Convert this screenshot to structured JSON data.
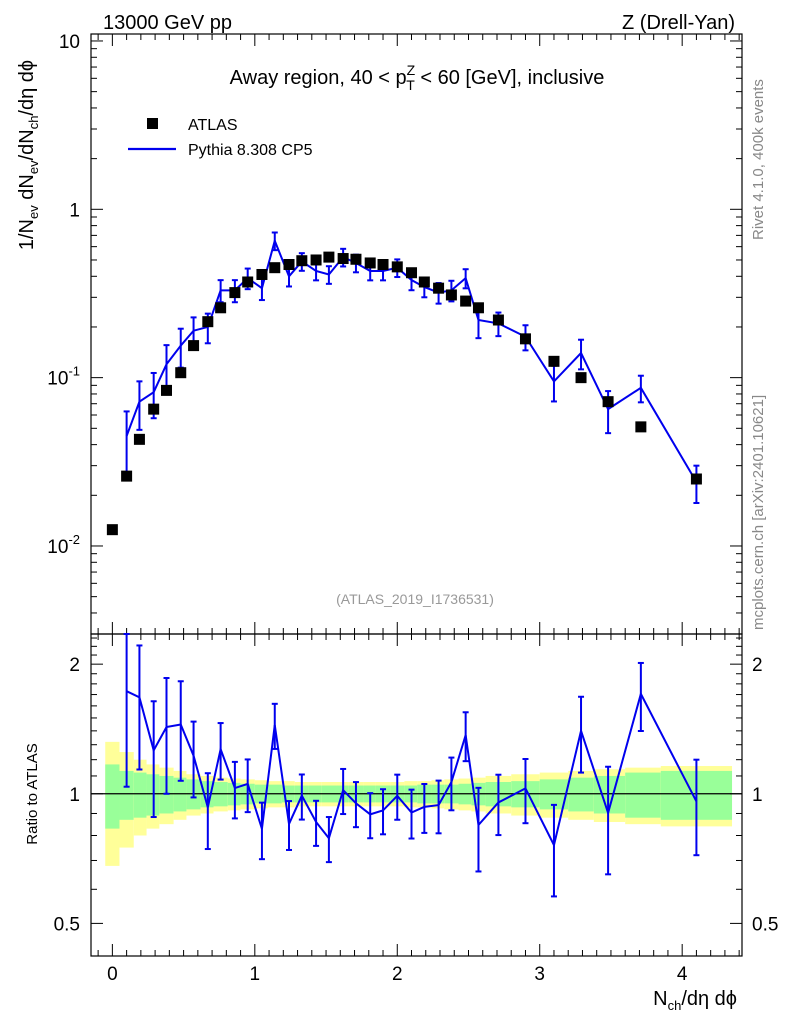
{
  "header": {
    "left": "13000 GeV pp",
    "right": "Z (Drell-Yan)"
  },
  "side": {
    "rivet": "Rivet 4.1.0,  400k events",
    "mcplots": "mcplots.cern.ch [arXiv:2401.10621]"
  },
  "chart_data": {
    "type": "line",
    "title_parts": {
      "pre": "Away region, 40 < p",
      "sup": "Z",
      "sub": "T",
      "post": " < 60 [GeV], inclusive"
    },
    "watermark": "(ATLAS_2019_I1736531)",
    "ylabel_main": "1/N_ev dN_ev/dN_ch/dη dϕ",
    "ylabel_ratio": "Ratio to ATLAS",
    "xlabel": "N_ch/dη dϕ",
    "legend": {
      "data": "ATLAS",
      "mc": "Pythia 8.308 CP5",
      "placement": "top-left"
    },
    "colors": {
      "data": "#000000",
      "mc": "#0000ee",
      "band_inner": "#99ff99",
      "band_outer": "#ffff99"
    },
    "x_range": [
      -0.15,
      4.42
    ],
    "x_ticks": [
      "0",
      "1",
      "2",
      "3",
      "4"
    ],
    "y_range_main": [
      0.003,
      11
    ],
    "y_ticks_main": [
      {
        "v": 0.01,
        "base": "10",
        "exp": "-2"
      },
      {
        "v": 0.1,
        "base": "10",
        "exp": "-1"
      },
      {
        "v": 1,
        "base": "1",
        "exp": ""
      },
      {
        "v": 10,
        "base": "10",
        "exp": ""
      }
    ],
    "y_range_ratio": [
      0.42,
      2.35
    ],
    "y_ticks_ratio": [
      "0.5",
      "1",
      "2"
    ],
    "data_x": [
      0.0,
      0.1,
      0.19,
      0.29,
      0.38,
      0.48,
      0.57,
      0.67,
      0.76,
      0.86,
      0.95,
      1.05,
      1.14,
      1.24,
      1.33,
      1.43,
      1.52,
      1.62,
      1.71,
      1.81,
      1.9,
      2.0,
      2.1,
      2.19,
      2.29,
      2.38,
      2.48,
      2.57,
      2.71,
      2.9,
      3.1,
      3.29,
      3.48,
      3.71,
      4.1
    ],
    "data_y": [
      0.0125,
      0.026,
      0.043,
      0.065,
      0.084,
      0.107,
      0.155,
      0.215,
      0.26,
      0.32,
      0.37,
      0.41,
      0.45,
      0.47,
      0.495,
      0.5,
      0.52,
      0.51,
      0.505,
      0.48,
      0.47,
      0.455,
      0.42,
      0.37,
      0.34,
      0.31,
      0.285,
      0.26,
      0.22,
      0.17,
      0.125,
      0.1,
      0.072,
      0.051,
      0.025
    ],
    "mc_x": [
      0.1,
      0.19,
      0.29,
      0.38,
      0.48,
      0.57,
      0.67,
      0.76,
      0.86,
      0.95,
      1.05,
      1.14,
      1.24,
      1.33,
      1.43,
      1.52,
      1.62,
      1.71,
      1.81,
      1.9,
      2.0,
      2.1,
      2.19,
      2.29,
      2.38,
      2.48,
      2.57,
      2.71,
      2.9,
      3.1,
      3.29,
      3.48,
      3.71,
      4.1
    ],
    "mc_y": [
      0.045,
      0.072,
      0.082,
      0.12,
      0.155,
      0.19,
      0.2,
      0.33,
      0.33,
      0.39,
      0.34,
      0.65,
      0.4,
      0.49,
      0.43,
      0.41,
      0.52,
      0.48,
      0.43,
      0.43,
      0.45,
      0.38,
      0.345,
      0.32,
      0.33,
      0.39,
      0.22,
      0.21,
      0.175,
      0.095,
      0.14,
      0.065,
      0.087,
      0.024
    ],
    "mc_err": [
      0.4,
      0.32,
      0.3,
      0.3,
      0.26,
      0.2,
      0.2,
      0.15,
      0.15,
      0.14,
      0.15,
      0.12,
      0.13,
      0.12,
      0.12,
      0.12,
      0.12,
      0.12,
      0.12,
      0.12,
      0.12,
      0.13,
      0.13,
      0.14,
      0.14,
      0.13,
      0.22,
      0.16,
      0.17,
      0.24,
      0.2,
      0.28,
      0.18,
      0.25
    ],
    "band_edges": [
      -0.05,
      0.05,
      0.15,
      0.24,
      0.33,
      0.43,
      0.52,
      0.62,
      0.71,
      0.81,
      0.9,
      1.0,
      1.09,
      1.19,
      1.28,
      1.38,
      1.47,
      1.57,
      1.66,
      1.76,
      1.85,
      1.95,
      2.05,
      2.14,
      2.24,
      2.33,
      2.43,
      2.52,
      2.62,
      2.8,
      3.0,
      3.2,
      3.38,
      3.6,
      3.85,
      4.35
    ],
    "band_inner": [
      0.17,
      0.13,
      0.12,
      0.11,
      0.1,
      0.09,
      0.08,
      0.07,
      0.065,
      0.06,
      0.055,
      0.05,
      0.05,
      0.045,
      0.045,
      0.045,
      0.045,
      0.045,
      0.045,
      0.045,
      0.045,
      0.045,
      0.045,
      0.05,
      0.05,
      0.05,
      0.055,
      0.06,
      0.065,
      0.07,
      0.08,
      0.09,
      0.1,
      0.12,
      0.13
    ],
    "band_outer": [
      0.32,
      0.25,
      0.2,
      0.17,
      0.15,
      0.13,
      0.11,
      0.1,
      0.09,
      0.085,
      0.08,
      0.075,
      0.07,
      0.07,
      0.065,
      0.065,
      0.065,
      0.065,
      0.065,
      0.065,
      0.065,
      0.065,
      0.07,
      0.07,
      0.075,
      0.08,
      0.085,
      0.09,
      0.1,
      0.11,
      0.12,
      0.13,
      0.14,
      0.15,
      0.16
    ]
  }
}
